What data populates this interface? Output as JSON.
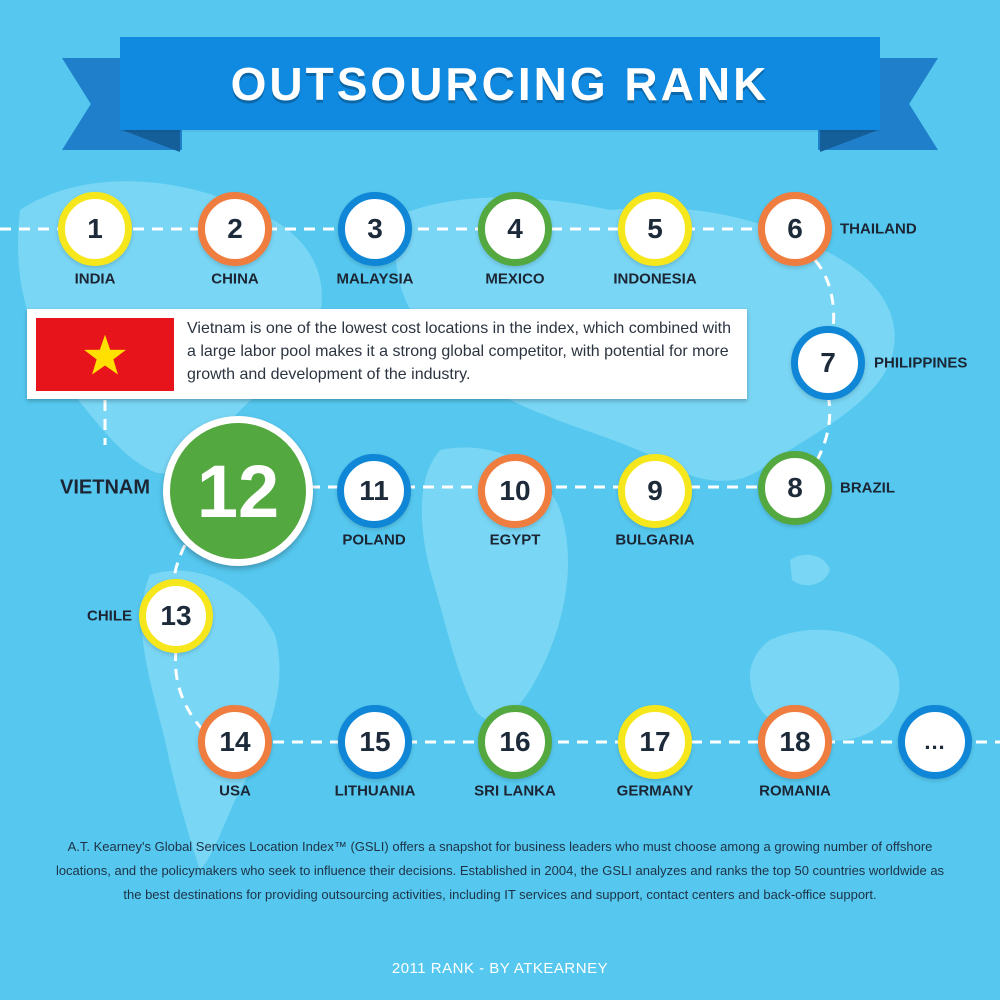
{
  "title": "OUTSOURCING RANK",
  "colors": {
    "background": "#56c8ef",
    "banner": "#0f8ae0",
    "yellow": "#f5e71c",
    "orange": "#ee7d3f",
    "blue": "#0f86d6",
    "green": "#54a840",
    "flag_red": "#e8141c",
    "flag_star": "#ffe000"
  },
  "ranks": [
    {
      "rank": "1",
      "country": "INDIA",
      "ring": "yellow"
    },
    {
      "rank": "2",
      "country": "CHINA",
      "ring": "orange"
    },
    {
      "rank": "3",
      "country": "MALAYSIA",
      "ring": "blue"
    },
    {
      "rank": "4",
      "country": "MEXICO",
      "ring": "green"
    },
    {
      "rank": "5",
      "country": "INDONESIA",
      "ring": "yellow"
    },
    {
      "rank": "6",
      "country": "THAILAND",
      "ring": "orange"
    },
    {
      "rank": "7",
      "country": "PHILIPPINES",
      "ring": "blue"
    },
    {
      "rank": "8",
      "country": "BRAZIL",
      "ring": "green"
    },
    {
      "rank": "9",
      "country": "BULGARIA",
      "ring": "yellow"
    },
    {
      "rank": "10",
      "country": "EGYPT",
      "ring": "orange"
    },
    {
      "rank": "11",
      "country": "POLAND",
      "ring": "blue"
    },
    {
      "rank": "12",
      "country": "VIETNAM",
      "ring": "green"
    },
    {
      "rank": "13",
      "country": "CHILE",
      "ring": "yellow"
    },
    {
      "rank": "14",
      "country": "USA",
      "ring": "orange"
    },
    {
      "rank": "15",
      "country": "LITHUANIA",
      "ring": "blue"
    },
    {
      "rank": "16",
      "country": "SRI LANKA",
      "ring": "green"
    },
    {
      "rank": "17",
      "country": "GERMANY",
      "ring": "yellow"
    },
    {
      "rank": "18",
      "country": "ROMANIA",
      "ring": "orange"
    }
  ],
  "more_label": "...",
  "more_ring": "blue",
  "highlight": {
    "rank": "12",
    "country": "VIETNAM",
    "flag_icon": "vietnam-flag-icon",
    "description": "Vietnam is one of the lowest cost locations in the index, which com­bined with a large labor pool makes it a strong global competitor, with potential for more growth and development of the industry."
  },
  "footer": {
    "description": "A.T. Kearney's Global Services Location Index™ (GSLI) offers a snapshot for business leaders who must choose among a growing number of offshore locations, and the policymakers who seek to influence their decisions. Established in 2004, the GSLI analyzes and ranks the top 50 countries worldwide as the best destinations for providing outsourcing activities, including IT services and support, contact centers and back-office support.",
    "source": "2011 RANK - BY ATKEARNEY"
  }
}
